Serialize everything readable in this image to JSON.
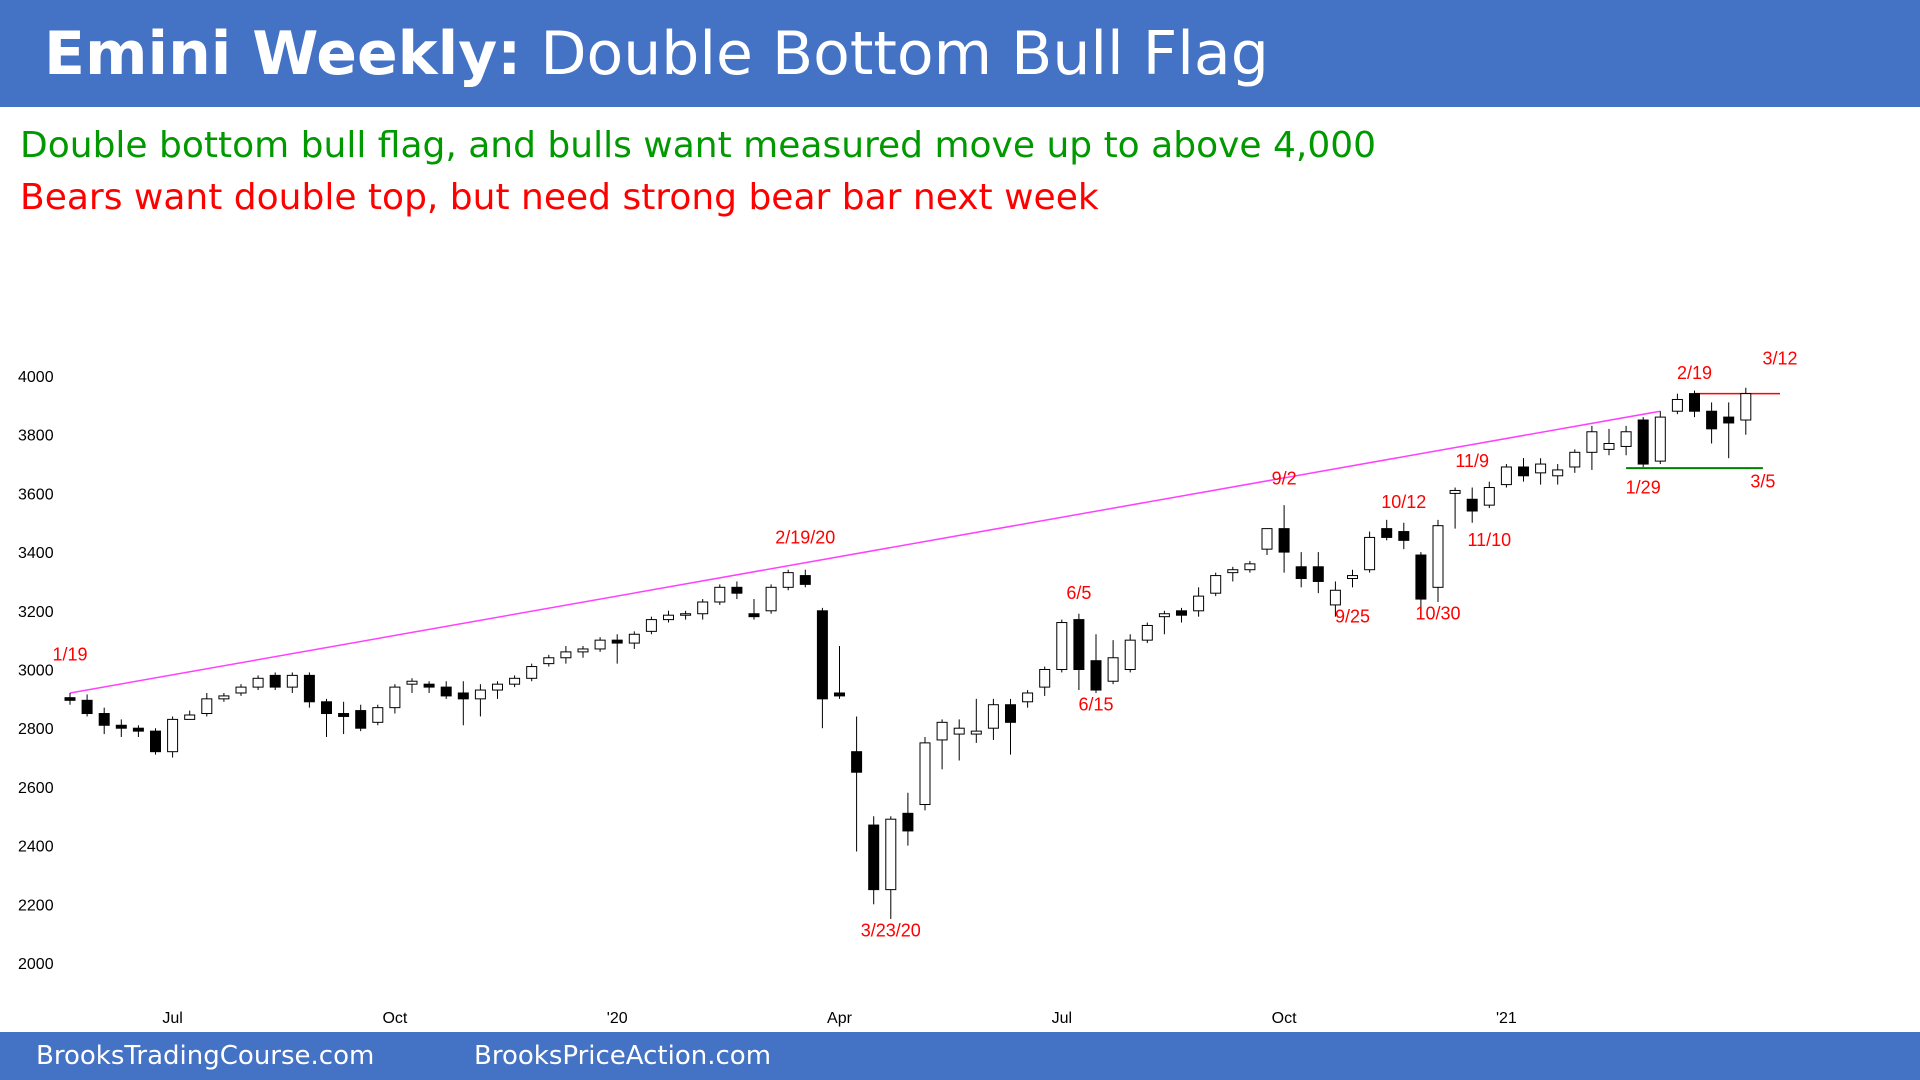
{
  "header": {
    "title_bold": "Emini Weekly:",
    "title_rest": " Double Bottom Bull Flag"
  },
  "subtitle": {
    "line1": "Double bottom bull flag, and bulls want measured move up to above 4,000",
    "line2": "Bears want double top, but need strong bear bar next week"
  },
  "footer": {
    "left": "BrooksTradingCourse.com",
    "right": "BrooksPriceAction.com"
  },
  "colors": {
    "header_bg": "#4472c4",
    "bull_text": "#009900",
    "bear_text": "#ff0000",
    "trendline": "#ff40ff",
    "annotation": "#ff0000",
    "support_line": "#008000"
  },
  "chart_data": {
    "type": "candlestick",
    "interval": "weekly",
    "ylim": [
      2000,
      4000
    ],
    "yticks": [
      4000,
      3800,
      3600,
      3400,
      3200,
      3000,
      2800,
      2600,
      2400,
      2200,
      2000
    ],
    "xticks": [
      {
        "label": "Jul",
        "index": 6
      },
      {
        "label": "Oct",
        "index": 19
      },
      {
        "label": "'20",
        "index": 32
      },
      {
        "label": "Apr",
        "index": 45
      },
      {
        "label": "Jul",
        "index": 58
      },
      {
        "label": "Oct",
        "index": 71
      },
      {
        "label": "'21",
        "index": 84
      }
    ],
    "candles": [
      [
        2904,
        2920,
        2880,
        2895
      ],
      [
        2895,
        2915,
        2840,
        2850
      ],
      [
        2850,
        2870,
        2780,
        2810
      ],
      [
        2810,
        2830,
        2770,
        2800
      ],
      [
        2800,
        2810,
        2770,
        2790
      ],
      [
        2790,
        2800,
        2710,
        2720
      ],
      [
        2720,
        2840,
        2700,
        2830
      ],
      [
        2830,
        2860,
        2830,
        2845
      ],
      [
        2850,
        2920,
        2840,
        2900
      ],
      [
        2900,
        2920,
        2890,
        2910
      ],
      [
        2920,
        2950,
        2910,
        2940
      ],
      [
        2940,
        2980,
        2930,
        2970
      ],
      [
        2980,
        2990,
        2930,
        2940
      ],
      [
        2940,
        2990,
        2920,
        2980
      ],
      [
        2980,
        2990,
        2870,
        2890
      ],
      [
        2890,
        2900,
        2770,
        2850
      ],
      [
        2850,
        2890,
        2780,
        2840
      ],
      [
        2860,
        2880,
        2790,
        2800
      ],
      [
        2820,
        2880,
        2810,
        2870
      ],
      [
        2870,
        2950,
        2850,
        2940
      ],
      [
        2950,
        2970,
        2920,
        2960
      ],
      [
        2950,
        2960,
        2920,
        2940
      ],
      [
        2940,
        2960,
        2900,
        2910
      ],
      [
        2920,
        2960,
        2810,
        2900
      ],
      [
        2900,
        2950,
        2840,
        2930
      ],
      [
        2930,
        2960,
        2900,
        2950
      ],
      [
        2950,
        2980,
        2940,
        2970
      ],
      [
        2970,
        3020,
        2960,
        3010
      ],
      [
        3020,
        3050,
        3010,
        3040
      ],
      [
        3040,
        3080,
        3020,
        3060
      ],
      [
        3060,
        3080,
        3040,
        3070
      ],
      [
        3070,
        3110,
        3060,
        3100
      ],
      [
        3100,
        3120,
        3020,
        3090
      ],
      [
        3090,
        3130,
        3070,
        3120
      ],
      [
        3130,
        3180,
        3120,
        3170
      ],
      [
        3170,
        3200,
        3160,
        3185
      ],
      [
        3185,
        3200,
        3170,
        3190
      ],
      [
        3190,
        3240,
        3170,
        3230
      ],
      [
        3230,
        3290,
        3220,
        3280
      ],
      [
        3280,
        3300,
        3240,
        3260
      ],
      [
        3190,
        3240,
        3170,
        3180
      ],
      [
        3200,
        3290,
        3190,
        3280
      ],
      [
        3280,
        3340,
        3270,
        3330
      ],
      [
        3320,
        3340,
        3280,
        3290
      ],
      [
        3200,
        3210,
        2800,
        2900
      ],
      [
        2920,
        3080,
        2900,
        2910
      ],
      [
        2720,
        2840,
        2380,
        2650
      ],
      [
        2470,
        2500,
        2200,
        2250
      ],
      [
        2250,
        2500,
        2150,
        2490
      ],
      [
        2510,
        2580,
        2400,
        2450
      ],
      [
        2540,
        2770,
        2520,
        2750
      ],
      [
        2760,
        2830,
        2660,
        2820
      ],
      [
        2780,
        2830,
        2690,
        2800
      ],
      [
        2780,
        2900,
        2750,
        2790
      ],
      [
        2800,
        2900,
        2760,
        2880
      ],
      [
        2880,
        2900,
        2710,
        2820
      ],
      [
        2890,
        2930,
        2870,
        2920
      ],
      [
        2940,
        3010,
        2910,
        3000
      ],
      [
        3000,
        3170,
        2990,
        3160
      ],
      [
        3170,
        3190,
        2930,
        3000
      ],
      [
        3030,
        3120,
        2920,
        2930
      ],
      [
        2960,
        3100,
        2950,
        3040
      ],
      [
        3000,
        3120,
        2990,
        3100
      ],
      [
        3100,
        3160,
        3090,
        3150
      ],
      [
        3180,
        3200,
        3120,
        3190
      ],
      [
        3200,
        3210,
        3160,
        3185
      ],
      [
        3200,
        3280,
        3180,
        3250
      ],
      [
        3260,
        3330,
        3250,
        3320
      ],
      [
        3330,
        3350,
        3300,
        3340
      ],
      [
        3340,
        3370,
        3330,
        3360
      ],
      [
        3410,
        3470,
        3390,
        3480
      ],
      [
        3480,
        3560,
        3330,
        3400
      ],
      [
        3350,
        3400,
        3280,
        3310
      ],
      [
        3350,
        3400,
        3260,
        3300
      ],
      [
        3220,
        3300,
        3180,
        3270
      ],
      [
        3310,
        3340,
        3280,
        3320
      ],
      [
        3340,
        3470,
        3330,
        3450
      ],
      [
        3480,
        3510,
        3440,
        3450
      ],
      [
        3470,
        3500,
        3410,
        3440
      ],
      [
        3390,
        3400,
        3200,
        3240
      ],
      [
        3280,
        3510,
        3230,
        3490
      ],
      [
        3600,
        3620,
        3480,
        3610
      ],
      [
        3580,
        3620,
        3500,
        3540
      ],
      [
        3560,
        3640,
        3550,
        3620
      ],
      [
        3630,
        3700,
        3620,
        3690
      ],
      [
        3690,
        3720,
        3640,
        3660
      ],
      [
        3670,
        3720,
        3630,
        3700
      ],
      [
        3660,
        3700,
        3630,
        3680
      ],
      [
        3690,
        3750,
        3670,
        3740
      ],
      [
        3740,
        3830,
        3680,
        3810
      ],
      [
        3750,
        3820,
        3730,
        3770
      ],
      [
        3760,
        3830,
        3730,
        3810
      ],
      [
        3850,
        3860,
        3690,
        3700
      ],
      [
        3710,
        3880,
        3700,
        3860
      ],
      [
        3880,
        3940,
        3870,
        3920
      ],
      [
        3940,
        3950,
        3860,
        3880
      ],
      [
        3880,
        3910,
        3770,
        3820
      ],
      [
        3860,
        3910,
        3720,
        3840
      ],
      [
        3850,
        3960,
        3800,
        3940
      ]
    ],
    "trendline": {
      "from": [
        0,
        2920
      ],
      "to": [
        93,
        3880
      ]
    },
    "resistance_line": {
      "from": [
        95,
        3940
      ],
      "to": [
        100,
        3940
      ]
    },
    "support_line": {
      "from": [
        91,
        3686
      ],
      "to": [
        99,
        3686
      ]
    },
    "labels": [
      {
        "text": "1/19",
        "index": 0,
        "price": 3030
      },
      {
        "text": "2/19/20",
        "index": 43,
        "price": 3430
      },
      {
        "text": "3/23/20",
        "index": 48,
        "price": 2090
      },
      {
        "text": "6/5",
        "index": 59,
        "price": 3240
      },
      {
        "text": "6/15",
        "index": 60,
        "price": 2860
      },
      {
        "text": "9/2",
        "index": 71,
        "price": 3630
      },
      {
        "text": "9/25",
        "index": 75,
        "price": 3160
      },
      {
        "text": "10/12",
        "index": 78,
        "price": 3550
      },
      {
        "text": "10/30",
        "index": 80,
        "price": 3170
      },
      {
        "text": "11/9",
        "index": 82,
        "price": 3690
      },
      {
        "text": "11/10",
        "index": 83,
        "price": 3420
      },
      {
        "text": "1/29",
        "index": 92,
        "price": 3600
      },
      {
        "text": "2/19",
        "index": 95,
        "price": 3990
      },
      {
        "text": "3/5",
        "index": 99,
        "price": 3620
      },
      {
        "text": "3/12",
        "index": 100,
        "price": 4040
      }
    ]
  }
}
